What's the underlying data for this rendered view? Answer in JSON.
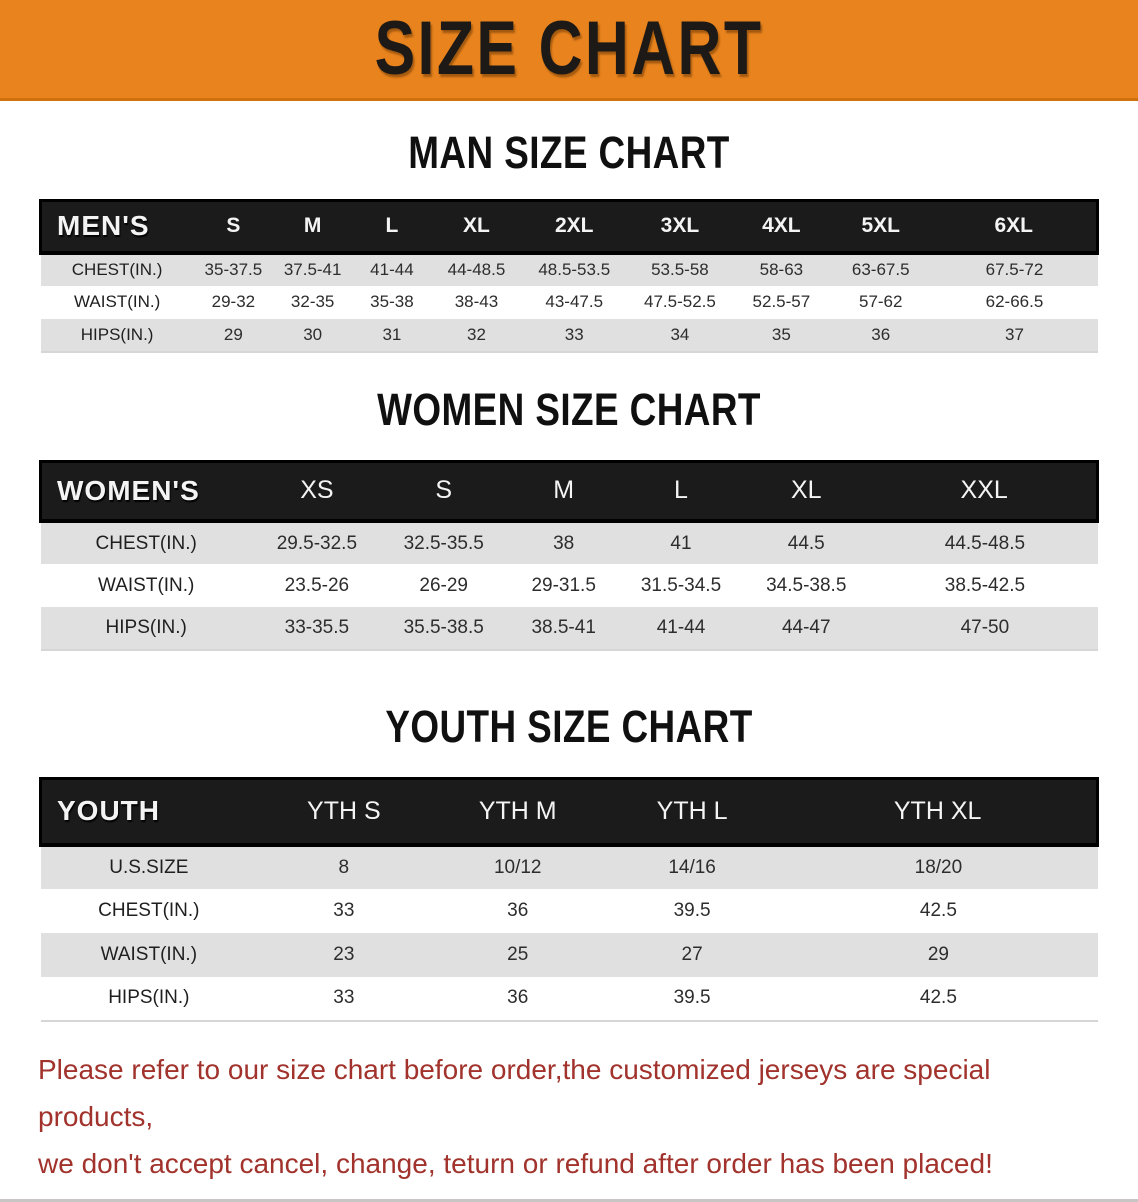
{
  "banner": {
    "title": "SIZE CHART"
  },
  "colors": {
    "banner_bg": "#E8831D",
    "table_header_bg": "#1B1B1B",
    "row_stripe": "#E0E0E0",
    "notice_text": "#A1322C"
  },
  "sections": [
    {
      "heading": "MAN SIZE CHART",
      "label": "MEN'S",
      "columns": [
        "S",
        "M",
        "L",
        "XL",
        "2XL",
        "3XL",
        "4XL",
        "5XL",
        "6XL"
      ],
      "rows": [
        {
          "label": "CHEST(IN.)",
          "values": [
            "35-37.5",
            "37.5-41",
            "41-44",
            "44-48.5",
            "48.5-53.5",
            "53.5-58",
            "58-63",
            "63-67.5",
            "67.5-72"
          ]
        },
        {
          "label": "WAIST(IN.)",
          "values": [
            "29-32",
            "32-35",
            "35-38",
            "38-43",
            "43-47.5",
            "47.5-52.5",
            "52.5-57",
            "57-62",
            "62-66.5"
          ]
        },
        {
          "label": "HIPS(IN.)",
          "values": [
            "29",
            "30",
            "31",
            "32",
            "33",
            "34",
            "35",
            "36",
            "37"
          ]
        }
      ]
    },
    {
      "heading": "WOMEN SIZE CHART",
      "label": "WOMEN'S",
      "columns": [
        "XS",
        "S",
        "M",
        "L",
        "XL",
        "XXL"
      ],
      "rows": [
        {
          "label": "CHEST(IN.)",
          "values": [
            "29.5-32.5",
            "32.5-35.5",
            "38",
            "41",
            "44.5",
            "44.5-48.5"
          ]
        },
        {
          "label": "WAIST(IN.)",
          "values": [
            "23.5-26",
            "26-29",
            "29-31.5",
            "31.5-34.5",
            "34.5-38.5",
            "38.5-42.5"
          ]
        },
        {
          "label": "HIPS(IN.)",
          "values": [
            "33-35.5",
            "35.5-38.5",
            "38.5-41",
            "41-44",
            "44-47",
            "47-50"
          ]
        }
      ]
    },
    {
      "heading": "YOUTH SIZE CHART",
      "label": "YOUTH",
      "columns": [
        "YTH S",
        "YTH M",
        "YTH L",
        "YTH XL"
      ],
      "rows": [
        {
          "label": "U.S.SIZE",
          "values": [
            "8",
            "10/12",
            "14/16",
            "18/20"
          ]
        },
        {
          "label": "CHEST(IN.)",
          "values": [
            "33",
            "36",
            "39.5",
            "42.5"
          ]
        },
        {
          "label": "WAIST(IN.)",
          "values": [
            "23",
            "25",
            "27",
            "29"
          ]
        },
        {
          "label": "HIPS(IN.)",
          "values": [
            "33",
            "36",
            "39.5",
            "42.5"
          ]
        }
      ]
    }
  ],
  "footer": {
    "line1": "Please refer to our size chart before order,the customized jerseys are special products,",
    "line2": "we don't accept cancel, change, teturn or refund after order has been placed!"
  }
}
